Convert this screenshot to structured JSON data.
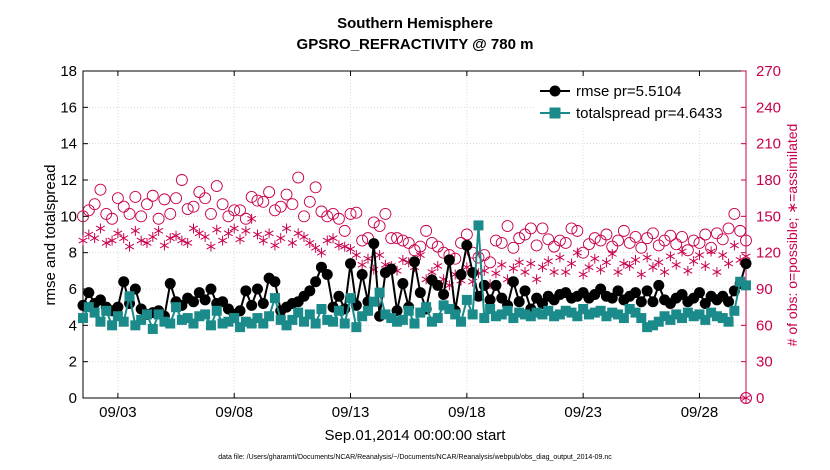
{
  "chart_data": {
    "type": "line",
    "title": "Southern Hemisphere",
    "subtitle": "GPSRO_REFRACTIVITY @ 780 m",
    "xlabel": "Sep.01,2014 00:00:00 start",
    "ylabel": "rmse and totalspread",
    "ylabel_right": "# of obs: o=possible; ∗=assimilated",
    "footnote": "data file: /Users/gharamti/Documents/NCAR/Reanalysis/~/Documents/NCAR/Reanalysis/webpub/obs_diag_output_2014-09.nc",
    "xlim": [
      1.5,
      30.0
    ],
    "x_ticks": [
      3,
      8,
      13,
      18,
      23,
      28
    ],
    "x_tick_labels": [
      "09/03",
      "09/08",
      "09/13",
      "09/18",
      "09/23",
      "09/28"
    ],
    "ylim": [
      0,
      18
    ],
    "y_ticks": [
      0,
      2,
      4,
      6,
      8,
      10,
      12,
      14,
      16,
      18
    ],
    "ylim_right": [
      0,
      270
    ],
    "y2_ticks": [
      0,
      30,
      60,
      90,
      120,
      150,
      180,
      210,
      240,
      270
    ],
    "grid": true,
    "legend_location": "top-right",
    "x": [
      1.5,
      1.75,
      2.0,
      2.25,
      2.5,
      2.75,
      3.0,
      3.25,
      3.5,
      3.75,
      4.0,
      4.25,
      4.5,
      4.75,
      5.0,
      5.25,
      5.5,
      5.75,
      6.0,
      6.25,
      6.5,
      6.75,
      7.0,
      7.25,
      7.5,
      7.75,
      8.0,
      8.25,
      8.5,
      8.75,
      9.0,
      9.25,
      9.5,
      9.75,
      10.0,
      10.25,
      10.5,
      10.75,
      11.0,
      11.25,
      11.5,
      11.75,
      12.0,
      12.25,
      12.5,
      12.75,
      13.0,
      13.25,
      13.5,
      13.75,
      14.0,
      14.25,
      14.5,
      14.75,
      15.0,
      15.25,
      15.5,
      15.75,
      16.0,
      16.25,
      16.5,
      16.75,
      17.0,
      17.25,
      17.5,
      17.75,
      18.0,
      18.25,
      18.5,
      18.75,
      19.0,
      19.25,
      19.5,
      19.75,
      20.0,
      20.25,
      20.5,
      20.75,
      21.0,
      21.25,
      21.5,
      21.75,
      22.0,
      22.25,
      22.5,
      22.75,
      23.0,
      23.25,
      23.5,
      23.75,
      24.0,
      24.25,
      24.5,
      24.75,
      25.0,
      25.25,
      25.5,
      25.75,
      26.0,
      26.25,
      26.5,
      26.75,
      27.0,
      27.25,
      27.5,
      27.75,
      28.0,
      28.25,
      28.5,
      28.75,
      29.0,
      29.25,
      29.5,
      29.75,
      30.0
    ],
    "series": [
      {
        "name": "rmse pr=5.5104",
        "axis": "left",
        "color": "#000000",
        "marker": "circle-filled",
        "values": [
          5.1,
          5.8,
          5.2,
          5.4,
          5.0,
          4.8,
          5.0,
          6.4,
          5.2,
          6.0,
          4.9,
          4.6,
          4.7,
          4.8,
          4.5,
          6.3,
          5.3,
          5.1,
          5.5,
          5.3,
          5.8,
          5.4,
          6.0,
          5.2,
          5.3,
          4.9,
          4.6,
          4.8,
          5.9,
          5.1,
          6.0,
          5.2,
          6.6,
          6.4,
          4.8,
          5.0,
          5.2,
          5.3,
          5.6,
          5.9,
          6.4,
          7.2,
          6.8,
          5.0,
          5.6,
          4.9,
          7.4,
          5.1,
          6.8,
          5.3,
          8.5,
          4.5,
          6.9,
          7.1,
          4.8,
          6.3,
          5.0,
          7.5,
          5.8,
          4.9,
          6.5,
          6.2,
          5.7,
          7.6,
          4.8,
          6.8,
          8.4,
          6.9,
          5.6,
          6.2,
          5.4,
          6.2,
          5.5,
          5.1,
          6.4,
          5.3,
          5.9,
          4.9,
          5.5,
          5.2,
          5.6,
          5.4,
          5.7,
          5.8,
          5.5,
          5.6,
          5.8,
          5.5,
          5.7,
          6.0,
          5.6,
          5.5,
          5.9,
          5.4,
          5.6,
          5.8,
          5.3,
          5.9,
          5.3,
          6.2,
          5.4,
          5.2,
          5.5,
          5.7,
          5.3,
          5.5,
          5.8,
          5.2,
          5.6,
          5.4,
          5.6,
          5.3,
          5.9,
          6.3,
          7.4
        ]
      },
      {
        "name": "totalspread pr=4.6433",
        "axis": "left",
        "color": "#1b8a8a",
        "marker": "square-filled",
        "values": [
          4.4,
          5.0,
          4.7,
          4.2,
          4.8,
          4.0,
          4.5,
          4.2,
          5.6,
          4.0,
          4.3,
          4.6,
          3.8,
          4.6,
          4.2,
          4.1,
          5.0,
          4.3,
          4.4,
          4.1,
          4.5,
          4.6,
          4.0,
          4.8,
          4.1,
          4.2,
          4.4,
          3.9,
          4.2,
          4.1,
          4.4,
          4.1,
          4.5,
          5.5,
          4.3,
          4.0,
          4.3,
          4.7,
          4.2,
          4.6,
          4.1,
          4.9,
          4.3,
          4.2,
          4.8,
          4.1,
          5.5,
          3.9,
          4.5,
          4.8,
          5.3,
          5.8,
          4.6,
          4.4,
          4.2,
          4.3,
          4.8,
          4.1,
          4.7,
          5.0,
          4.2,
          4.4,
          5.1,
          4.9,
          4.6,
          4.2,
          5.4,
          4.6,
          9.5,
          4.4,
          4.9,
          4.5,
          4.6,
          4.8,
          4.4,
          4.7,
          4.6,
          4.5,
          4.7,
          4.6,
          4.8,
          4.5,
          4.6,
          4.8,
          4.7,
          4.5,
          4.9,
          4.6,
          4.7,
          4.8,
          4.5,
          4.7,
          4.6,
          4.4,
          4.9,
          4.7,
          4.4,
          3.9,
          4.0,
          4.2,
          4.5,
          4.3,
          4.6,
          4.4,
          4.7,
          4.5,
          4.6,
          4.3,
          4.7,
          4.5,
          4.4,
          4.2,
          4.8,
          6.4,
          6.2
        ]
      },
      {
        "name": "obs possible",
        "axis": "right",
        "color": "#c8004f",
        "marker": "circle-open",
        "values": [
          150,
          155,
          160,
          172,
          152,
          148,
          165,
          158,
          152,
          166,
          150,
          160,
          167,
          148,
          164,
          152,
          165,
          180,
          156,
          158,
          170,
          165,
          152,
          175,
          160,
          150,
          155,
          155,
          148,
          166,
          163,
          162,
          170,
          155,
          158,
          168,
          160,
          182,
          150,
          162,
          174,
          154,
          150,
          152,
          148,
          138,
          152,
          153,
          130,
          132,
          145,
          142,
          152,
          132,
          132,
          130,
          128,
          122,
          125,
          138,
          128,
          125,
          120,
          118,
          115,
          128,
          135,
          120,
          116,
          118,
          112,
          130,
          128,
          142,
          124,
          132,
          135,
          140,
          126,
          140,
          131,
          125,
          130,
          128,
          140,
          138,
          120,
          127,
          132,
          130,
          135,
          125,
          130,
          138,
          128,
          133,
          124,
          132,
          136,
          126,
          130,
          134,
          127,
          133,
          122,
          130,
          128,
          135,
          124,
          136,
          131,
          140,
          152,
          138,
          130
        ]
      },
      {
        "name": "obs assimilated",
        "axis": "right",
        "color": "#c8004f",
        "marker": "asterisk",
        "values": [
          130,
          135,
          132,
          140,
          128,
          130,
          136,
          132,
          125,
          138,
          130,
          128,
          133,
          138,
          126,
          132,
          134,
          130,
          128,
          140,
          136,
          133,
          125,
          139,
          130,
          136,
          140,
          131,
          138,
          148,
          135,
          130,
          136,
          126,
          132,
          140,
          128,
          136,
          133,
          128,
          124,
          120,
          130,
          132,
          126,
          125,
          123,
          118,
          110,
          115,
          106,
          118,
          110,
          109,
          105,
          114,
          112,
          108,
          118,
          98,
          104,
          109,
          98,
          93,
          102,
          97,
          108,
          96,
          103,
          105,
          94,
          103,
          110,
          98,
          107,
          112,
          104,
          111,
          98,
          108,
          113,
          104,
          116,
          104,
          111,
          120,
          102,
          108,
          115,
          106,
          112,
          119,
          104,
          111,
          109,
          114,
          102,
          116,
          108,
          112,
          104,
          117,
          110,
          121,
          105,
          113,
          118,
          109,
          121,
          104,
          118,
          111,
          126,
          114,
          117
        ]
      }
    ]
  }
}
